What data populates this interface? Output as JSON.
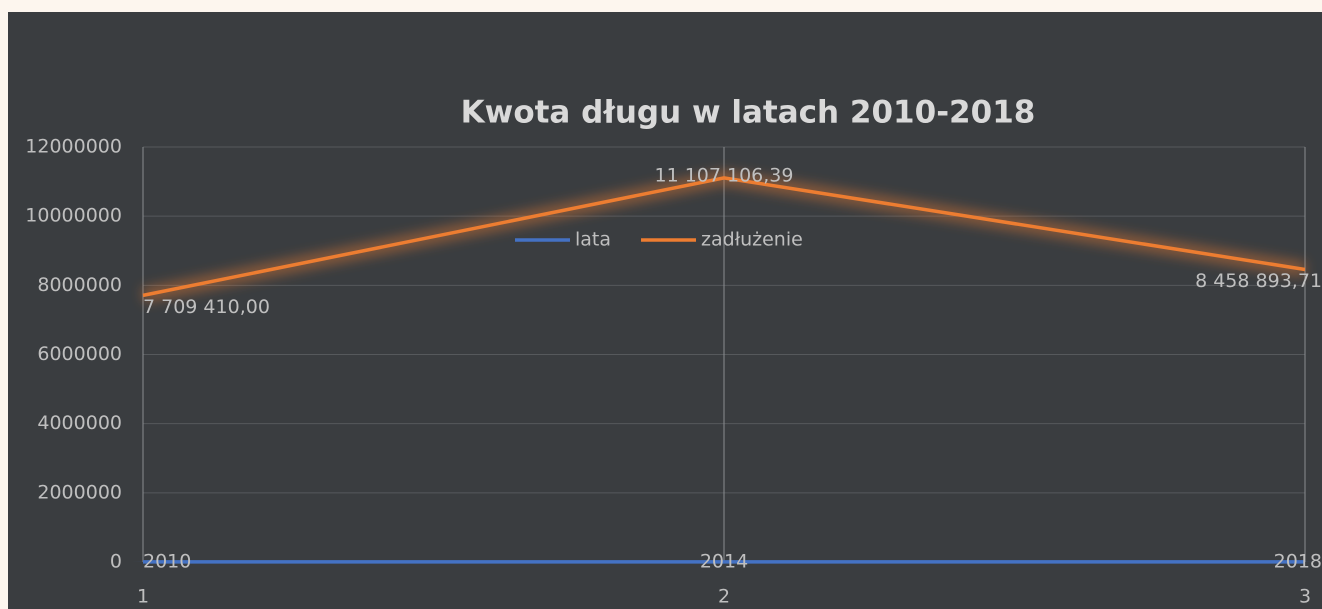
{
  "chart_data": {
    "type": "line",
    "title": "Kwota długu w latach 2010-2018",
    "categories": [
      "1",
      "2",
      "3"
    ],
    "series": [
      {
        "name": "lata",
        "color": "#4472c4",
        "values": [
          2010,
          2014,
          2018
        ]
      },
      {
        "name": "zadłużenie",
        "color": "#ed7d31",
        "values": [
          7709410,
          11107106.39,
          8458893.71
        ],
        "value_labels": [
          "7 709 410,00",
          "11 107 106,39",
          "8 458 893,71"
        ]
      }
    ],
    "ylim": [
      0,
      12000000
    ],
    "yticks": [
      0,
      2000000,
      4000000,
      6000000,
      8000000,
      10000000,
      12000000
    ],
    "grid": true,
    "data_labels": true
  }
}
